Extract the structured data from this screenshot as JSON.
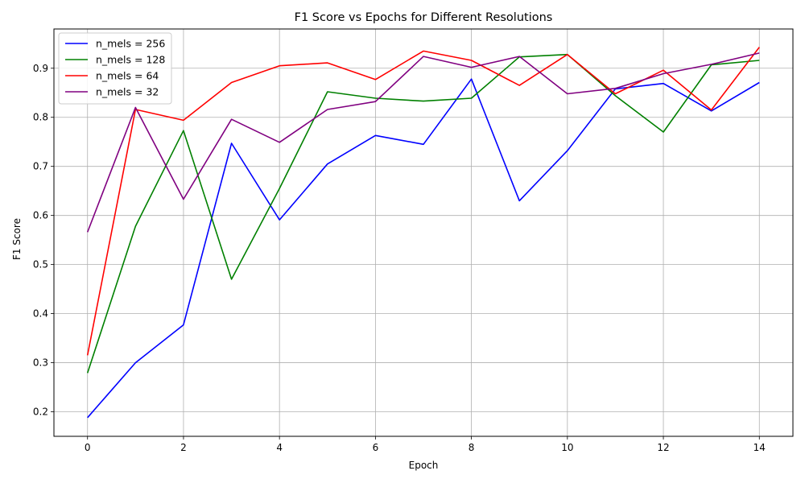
{
  "chart_data": {
    "type": "line",
    "title": "F1 Score vs Epochs for Different Resolutions",
    "xlabel": "Epoch",
    "ylabel": "F1 Score",
    "xlim": [
      -0.7,
      14.7
    ],
    "ylim": [
      0.15,
      0.98
    ],
    "xticks": [
      0,
      2,
      4,
      6,
      8,
      10,
      12,
      14
    ],
    "yticks": [
      0.2,
      0.3,
      0.4,
      0.5,
      0.6,
      0.7,
      0.8,
      0.9
    ],
    "ytick_labels": [
      "0.2",
      "0.3",
      "0.4",
      "0.5",
      "0.6",
      "0.7",
      "0.8",
      "0.9"
    ],
    "grid": true,
    "legend_position": "top-left",
    "x": [
      0,
      1,
      2,
      3,
      4,
      5,
      6,
      7,
      8,
      9,
      10,
      11,
      12,
      13,
      14
    ],
    "series": [
      {
        "name": "n_mels = 256",
        "color": "#0000ff",
        "values": [
          0.188,
          0.3,
          0.377,
          0.747,
          0.591,
          0.705,
          0.763,
          0.745,
          0.878,
          0.63,
          0.732,
          0.858,
          0.869,
          0.813,
          0.871
        ]
      },
      {
        "name": "n_mels = 128",
        "color": "#008000",
        "values": [
          0.279,
          0.578,
          0.773,
          0.47,
          0.655,
          0.852,
          0.839,
          0.833,
          0.839,
          0.923,
          0.928,
          0.844,
          0.77,
          0.907,
          0.916
        ]
      },
      {
        "name": "n_mels = 64",
        "color": "#ff0000",
        "values": [
          0.315,
          0.816,
          0.794,
          0.871,
          0.905,
          0.911,
          0.877,
          0.935,
          0.916,
          0.865,
          0.928,
          0.848,
          0.896,
          0.815,
          0.943
        ]
      },
      {
        "name": "n_mels = 32",
        "color": "#800080",
        "values": [
          0.566,
          0.82,
          0.633,
          0.796,
          0.749,
          0.816,
          0.832,
          0.924,
          0.902,
          0.924,
          0.848,
          0.859,
          0.889,
          0.908,
          0.931
        ]
      }
    ]
  }
}
